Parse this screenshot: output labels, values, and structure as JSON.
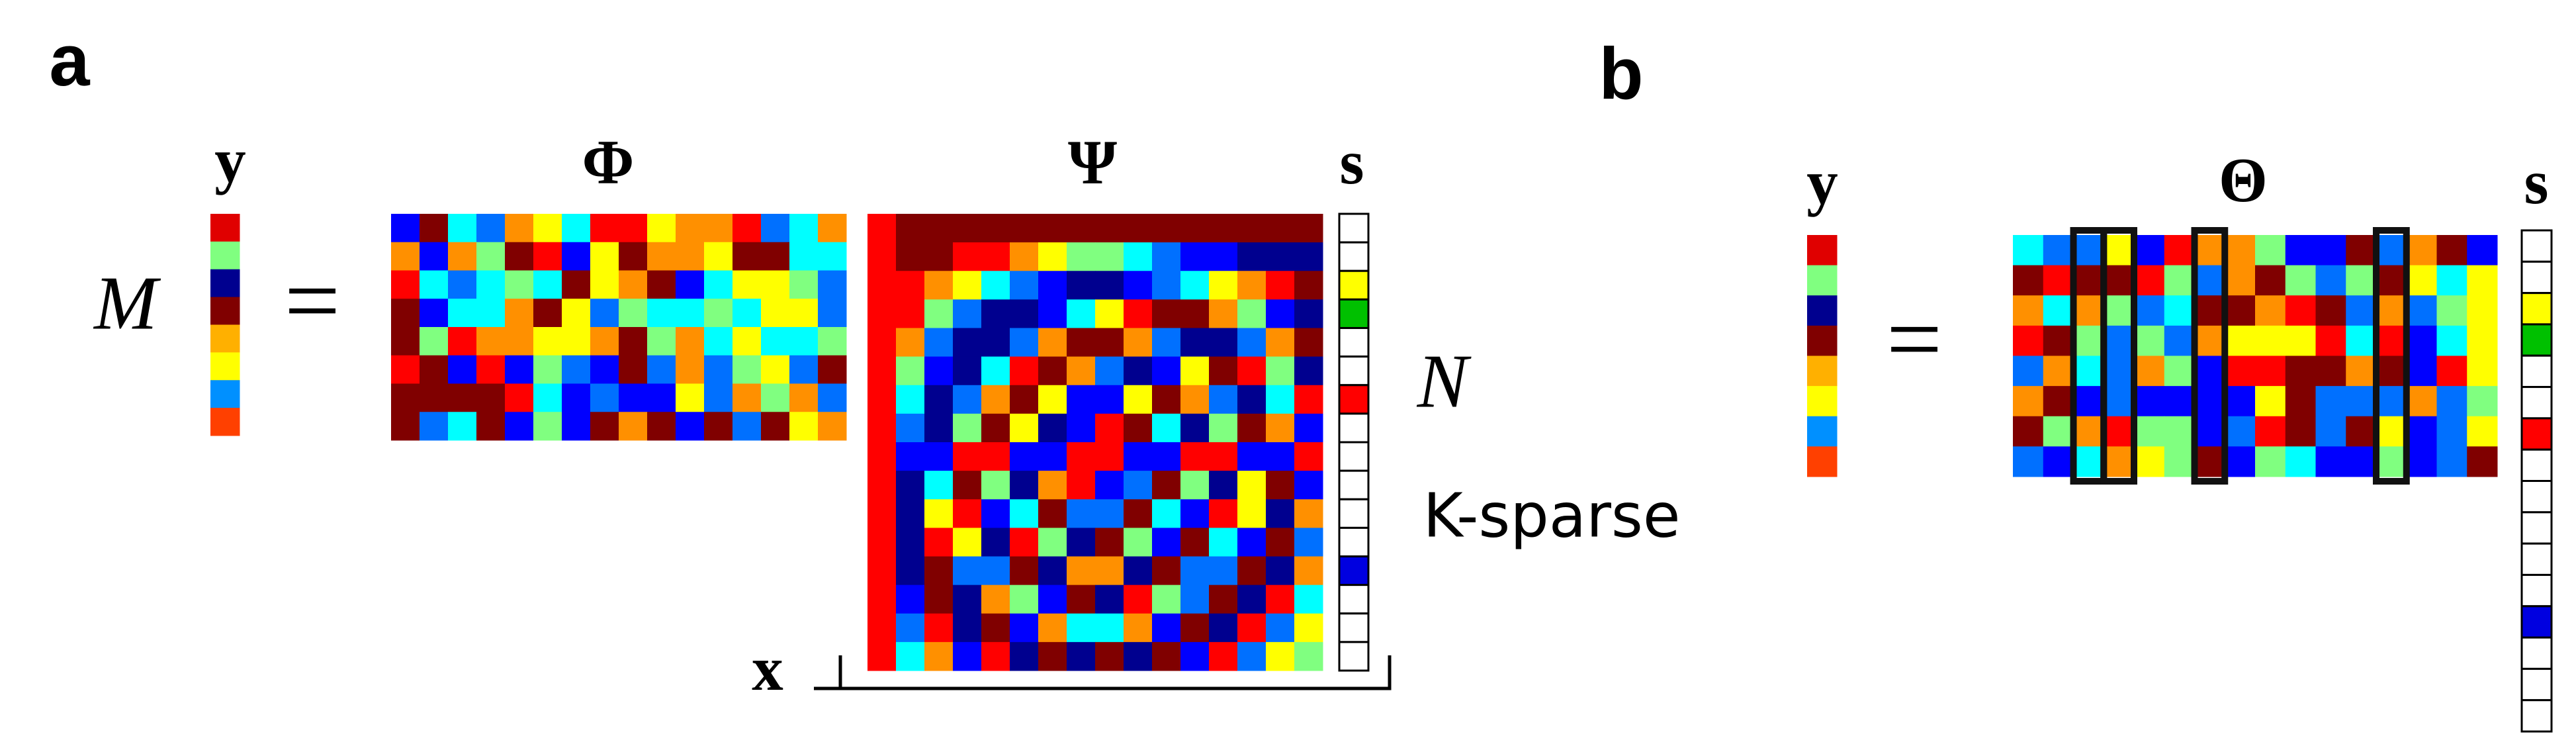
{
  "panel_a": {
    "label": "a",
    "y": "y",
    "M": "M",
    "equals": "=",
    "Phi": "Φ",
    "Psi": "Ψ",
    "s": "s",
    "N": "N",
    "sparsity": "K-sparse",
    "x": "x"
  },
  "panel_b": {
    "label": "b",
    "y": "y",
    "equals": "=",
    "Theta": "Θ",
    "s": "s"
  }
}
